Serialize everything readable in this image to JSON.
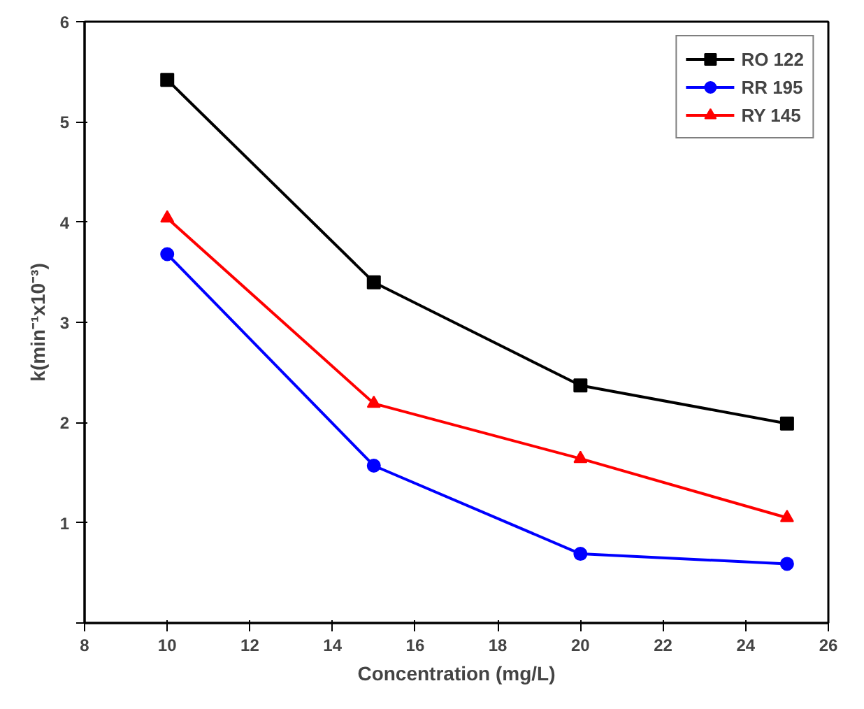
{
  "chart_data": {
    "type": "line",
    "xlabel": "Concentration (mg/L)",
    "ylabel": "k(min⁻¹x10⁻³)",
    "x": [
      10,
      15,
      20,
      25
    ],
    "series": [
      {
        "name": "RO 122",
        "color": "#000000",
        "marker": "square",
        "values": [
          5.42,
          3.4,
          2.37,
          1.99
        ]
      },
      {
        "name": "RR 195",
        "color": "#0000ff",
        "marker": "circle",
        "values": [
          3.68,
          1.57,
          0.69,
          0.59
        ]
      },
      {
        "name": "RY 145",
        "color": "#ff0000",
        "marker": "triangle",
        "values": [
          4.04,
          2.19,
          1.64,
          1.05
        ]
      }
    ],
    "xlim": [
      8,
      26
    ],
    "xticks": [
      8,
      10,
      12,
      14,
      16,
      18,
      20,
      22,
      24,
      26
    ],
    "ylim": [
      0,
      6
    ],
    "yticks": [
      {
        "value": 0,
        "label": null
      },
      1,
      2,
      3,
      4,
      5,
      6
    ],
    "grid": false,
    "legend": "top right",
    "line_style": "solid"
  }
}
